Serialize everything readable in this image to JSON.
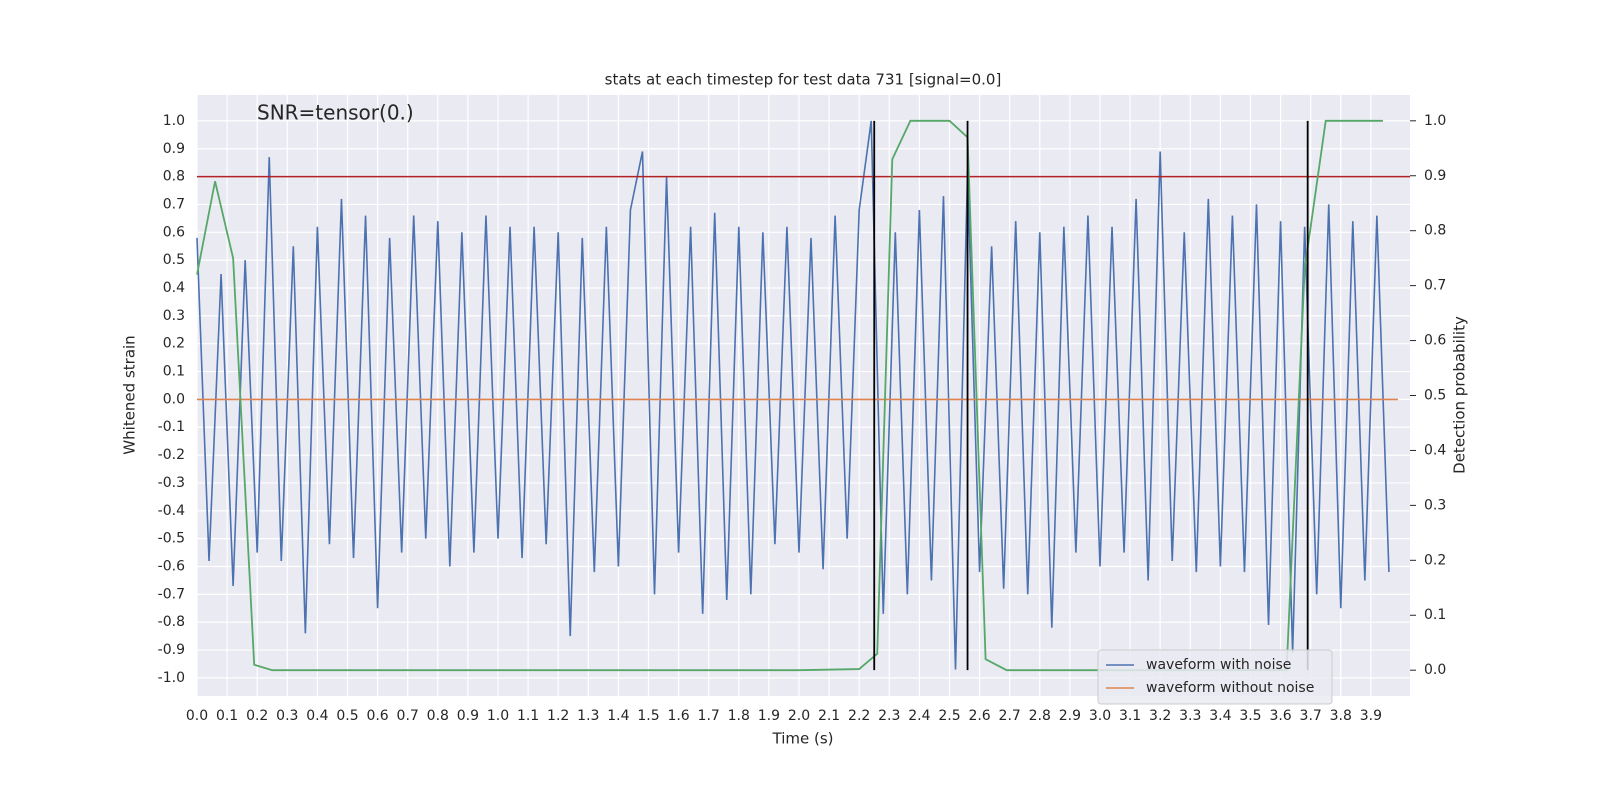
{
  "chart_data": {
    "type": "line",
    "title": "stats at each timestep for test data 731 [signal=0.0]",
    "annotation": "SNR=tensor(0.)",
    "xlabel": "Time (s)",
    "ylabel": "Whitened strain",
    "y2label": "Detection probability",
    "xlim": [
      0,
      4.03
    ],
    "ylim": [
      -1.065,
      1.093
    ],
    "y2lim": [
      -0.047,
      1.047
    ],
    "xticks": [
      {
        "value": 0,
        "label": "0.0"
      },
      0.1,
      0.2,
      0.3,
      0.4,
      0.5,
      0.6,
      0.7,
      0.8,
      0.9,
      {
        "value": 1,
        "label": "1.0"
      },
      1.1,
      1.2,
      1.3,
      1.4,
      1.5,
      1.6,
      1.7,
      1.8,
      1.9,
      {
        "value": 2,
        "label": "2.0"
      },
      2.1,
      2.2,
      2.3,
      2.4,
      2.5,
      2.6,
      2.7,
      2.8,
      2.9,
      {
        "value": 3,
        "label": "3.0"
      },
      3.1,
      3.2,
      3.3,
      3.4,
      3.5,
      3.6,
      3.7,
      3.8,
      3.9
    ],
    "yticks": [
      {
        "value": -1,
        "label": "-1.0"
      },
      -0.9,
      -0.8,
      -0.7,
      -0.6,
      -0.5,
      -0.4,
      -0.3,
      -0.2,
      -0.1,
      {
        "value": 0,
        "label": "0.0"
      },
      0.1,
      0.2,
      0.3,
      0.4,
      0.5,
      0.6,
      0.7,
      0.8,
      0.9,
      {
        "value": 1,
        "label": "1.0"
      }
    ],
    "y2ticks": [
      {
        "value": 0,
        "label": "0.0"
      },
      0.1,
      0.2,
      0.3,
      0.4,
      0.5,
      0.6,
      0.7,
      0.8,
      0.9,
      {
        "value": 1,
        "label": "1.0"
      }
    ],
    "grid": true,
    "legend": "lower right",
    "series": [
      {
        "name": "waveform with noise",
        "color": "#4c72b0",
        "x": [
          0,
          0.04,
          0.08,
          0.12,
          0.16,
          0.2,
          0.24,
          0.28,
          0.32,
          0.36,
          0.4,
          0.44,
          0.48,
          0.52,
          0.56,
          0.6,
          0.64,
          0.68,
          0.72,
          0.76,
          0.8,
          0.84,
          0.88,
          0.92,
          0.96,
          1,
          1.04,
          1.08,
          1.12,
          1.16,
          1.2,
          1.24,
          1.28,
          1.32,
          1.36,
          1.4,
          1.44,
          1.48,
          1.52,
          1.56,
          1.6,
          1.64,
          1.68,
          1.72,
          1.76,
          1.8,
          1.84,
          1.88,
          1.92,
          1.96,
          2,
          2.04,
          2.08,
          2.12,
          2.16,
          2.2,
          2.24,
          2.28,
          2.32,
          2.36,
          2.4,
          2.44,
          2.48,
          2.52,
          2.56,
          2.6,
          2.64,
          2.68,
          2.72,
          2.76,
          2.8,
          2.84,
          2.88,
          2.92,
          2.96,
          3,
          3.04,
          3.08,
          3.12,
          3.16,
          3.2,
          3.24,
          3.28,
          3.32,
          3.36,
          3.4,
          3.44,
          3.48,
          3.52,
          3.56,
          3.6,
          3.64,
          3.68,
          3.72,
          3.76,
          3.8,
          3.84,
          3.88,
          3.92,
          3.96
        ],
        "values": [
          0.58,
          -0.58,
          0.45,
          -0.67,
          0.5,
          -0.55,
          0.87,
          -0.58,
          0.55,
          -0.84,
          0.62,
          -0.52,
          0.72,
          -0.57,
          0.66,
          -0.75,
          0.58,
          -0.55,
          0.66,
          -0.5,
          0.64,
          -0.6,
          0.6,
          -0.55,
          0.66,
          -0.5,
          0.62,
          -0.57,
          0.62,
          -0.52,
          0.6,
          -0.85,
          0.58,
          -0.62,
          0.62,
          -0.6,
          0.68,
          0.89,
          -0.7,
          0.8,
          -0.55,
          0.62,
          -0.77,
          0.67,
          -0.72,
          0.62,
          -0.7,
          0.6,
          -0.52,
          0.62,
          -0.55,
          0.58,
          -0.61,
          0.66,
          -0.5,
          0.68,
          1.0,
          -0.77,
          0.6,
          -0.7,
          0.68,
          -0.65,
          0.73,
          -0.97,
          0.82,
          -0.62,
          0.55,
          -0.68,
          0.64,
          -0.7,
          0.6,
          -0.82,
          0.62,
          -0.55,
          0.66,
          -0.6,
          0.62,
          -0.55,
          0.72,
          -0.65,
          0.89,
          -0.58,
          0.6,
          -0.62,
          0.72,
          -0.6,
          0.66,
          -0.62,
          0.7,
          -0.81,
          0.64,
          -0.91,
          0.62,
          -0.7,
          0.7,
          -0.75,
          0.64,
          -0.65,
          0.66,
          -0.62
        ]
      },
      {
        "name": "waveform without noise",
        "color": "#dd8452",
        "x": [
          0,
          3.99
        ],
        "values": [
          0,
          0
        ]
      }
    ],
    "probability": {
      "color": "#55a868",
      "axis": "y2",
      "x": [
        0,
        0.06,
        0.12,
        0.19,
        0.25,
        1.0,
        2.0,
        2.2,
        2.26,
        2.31,
        2.37,
        2.5,
        2.56,
        2.62,
        2.69,
        3.0,
        3.62,
        3.68,
        3.75,
        3.94
      ],
      "values": [
        0.72,
        0.89,
        0.75,
        0.01,
        0,
        0,
        0,
        0.002,
        0.03,
        0.93,
        1.0,
        1.0,
        0.97,
        0.02,
        0,
        0,
        0,
        0.73,
        1.0,
        1.0
      ]
    },
    "threshold": {
      "value": 0.8,
      "color": "#b22222"
    },
    "vlines": {
      "x": [
        2.25,
        2.56,
        3.69
      ],
      "range": [
        0,
        1
      ],
      "axis": "y2",
      "color": "#000000"
    }
  }
}
